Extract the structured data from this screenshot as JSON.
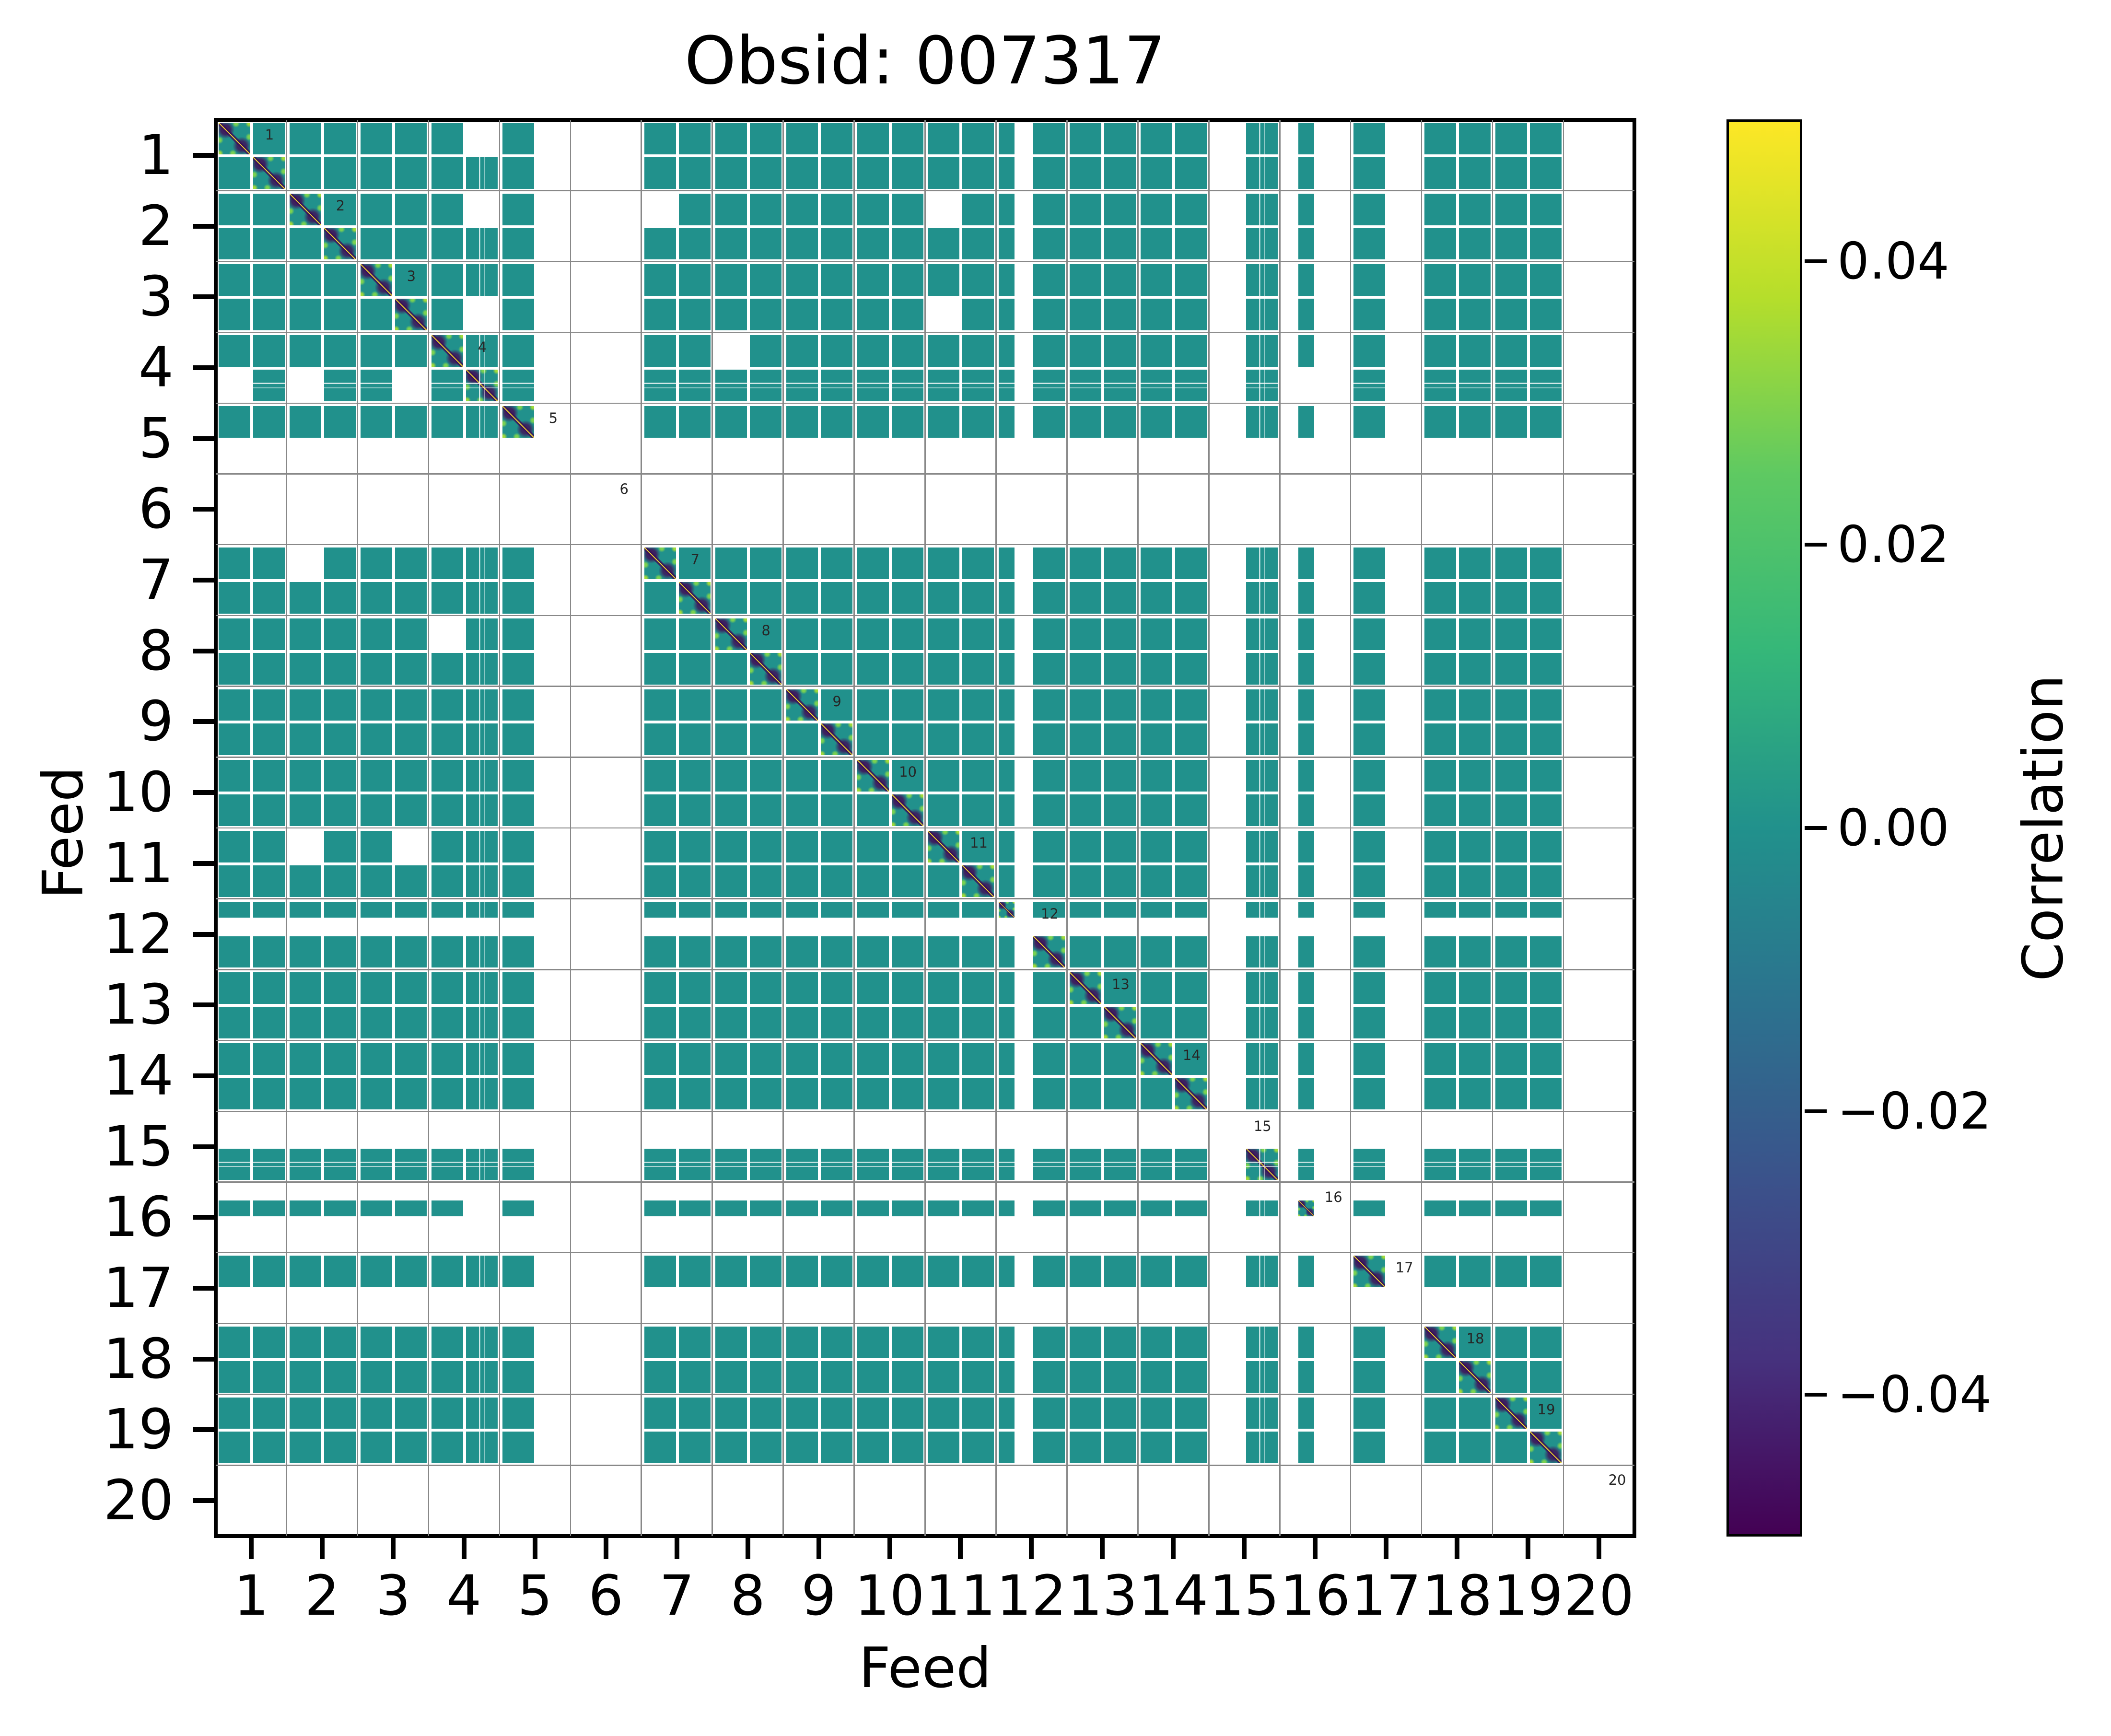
{
  "title": "Obsid: 007317",
  "axes": {
    "xlabel": "Feed",
    "ylabel": "Feed",
    "xticks": [
      "1",
      "2",
      "3",
      "4",
      "5",
      "6",
      "7",
      "8",
      "9",
      "10",
      "11",
      "12",
      "13",
      "14",
      "15",
      "16",
      "17",
      "18",
      "19",
      "20"
    ],
    "yticks": [
      "1",
      "2",
      "3",
      "4",
      "5",
      "6",
      "7",
      "8",
      "9",
      "10",
      "11",
      "12",
      "13",
      "14",
      "15",
      "16",
      "17",
      "18",
      "19",
      "20"
    ],
    "diag_labels": [
      "1",
      "2",
      "3",
      "4",
      "5",
      "6",
      "7",
      "8",
      "9",
      "10",
      "11",
      "12",
      "13",
      "14",
      "15",
      "16",
      "17",
      "18",
      "19",
      "20"
    ]
  },
  "colorbar": {
    "label": "Correlation",
    "tick_labels": [
      "0.04",
      "0.02",
      "0.00",
      "−0.02",
      "−0.04"
    ],
    "tick_values": [
      0.04,
      0.02,
      0.0,
      -0.02,
      -0.04
    ],
    "vmin": -0.05,
    "vmax": 0.05,
    "colormap": "viridis",
    "gradient_stops": [
      "#fde725",
      "#b5de2b",
      "#5ec962",
      "#35b779",
      "#21918c",
      "#2c728e",
      "#3b528b",
      "#46327e",
      "#440154"
    ]
  },
  "colors": {
    "tile_teal": "#21918c",
    "grid_gray": "#888888",
    "diag_line_yellow": "#fde725",
    "diag_dark_purple": "#440154",
    "diag_green": "#7ad151",
    "spine_black": "#000000",
    "background": "#ffffff"
  },
  "chart_data": {
    "type": "heatmap",
    "title": "Obsid: 007317",
    "xlabel": "Feed",
    "ylabel": "Feed",
    "x_categories": [
      "1",
      "2",
      "3",
      "4",
      "5",
      "6",
      "7",
      "8",
      "9",
      "10",
      "11",
      "12",
      "13",
      "14",
      "15",
      "16",
      "17",
      "18",
      "19",
      "20"
    ],
    "y_categories": [
      "1",
      "2",
      "3",
      "4",
      "5",
      "6",
      "7",
      "8",
      "9",
      "10",
      "11",
      "12",
      "13",
      "14",
      "15",
      "16",
      "17",
      "18",
      "19",
      "20"
    ],
    "colormap": "viridis",
    "vmin": -0.05,
    "vmax": 0.05,
    "colorbar_label": "Correlation",
    "colorbar_ticks": [
      0.04,
      0.02,
      0.0,
      -0.02,
      -0.04
    ],
    "off_diagonal_value": 0.0,
    "bands_per_feed": 2,
    "feed_bands": [
      {
        "feed": 1,
        "b1": "full",
        "b2": "full"
      },
      {
        "feed": 2,
        "b1": "full",
        "b2": "full"
      },
      {
        "feed": 3,
        "b1": "full",
        "b2": "full"
      },
      {
        "feed": 4,
        "b1": "full",
        "b2": "striped"
      },
      {
        "feed": 5,
        "b1": "full",
        "b2": "none"
      },
      {
        "feed": 6,
        "b1": "none",
        "b2": "none"
      },
      {
        "feed": 7,
        "b1": "full",
        "b2": "full"
      },
      {
        "feed": 8,
        "b1": "full",
        "b2": "full"
      },
      {
        "feed": 9,
        "b1": "full",
        "b2": "full"
      },
      {
        "feed": 10,
        "b1": "full",
        "b2": "full"
      },
      {
        "feed": 11,
        "b1": "full",
        "b2": "full"
      },
      {
        "feed": 12,
        "b1": "half-start",
        "b2": "full"
      },
      {
        "feed": 13,
        "b1": "full",
        "b2": "full"
      },
      {
        "feed": 14,
        "b1": "full",
        "b2": "full"
      },
      {
        "feed": 15,
        "b1": "none",
        "b2": "striped"
      },
      {
        "feed": 16,
        "b1": "half-end",
        "b2": "none"
      },
      {
        "feed": 17,
        "b1": "full",
        "b2": "none"
      },
      {
        "feed": 18,
        "b1": "full",
        "b2": "full"
      },
      {
        "feed": 19,
        "b1": "full",
        "b2": "full"
      },
      {
        "feed": 20,
        "b1": "none",
        "b2": "none"
      }
    ],
    "missing_band_pairs": [
      [
        "1.1",
        "4.2"
      ],
      [
        "2.1",
        "4.2"
      ],
      [
        "3.2",
        "4.2"
      ],
      [
        "4.2",
        "16.1"
      ],
      [
        "2.1",
        "7.1"
      ],
      [
        "2.1",
        "11.1"
      ],
      [
        "3.2",
        "11.1"
      ],
      [
        "4.1",
        "8.1"
      ]
    ],
    "diagonal_structure": "self-correlation blocks show a +1 yellow diagonal line with surrounding structure spanning -0.05 (dark purple) to +0.05 (yellow); all off-diagonal tiles are approximately 0 (teal); white areas are missing data",
    "grid": true,
    "legend_position": "right-colorbar"
  }
}
